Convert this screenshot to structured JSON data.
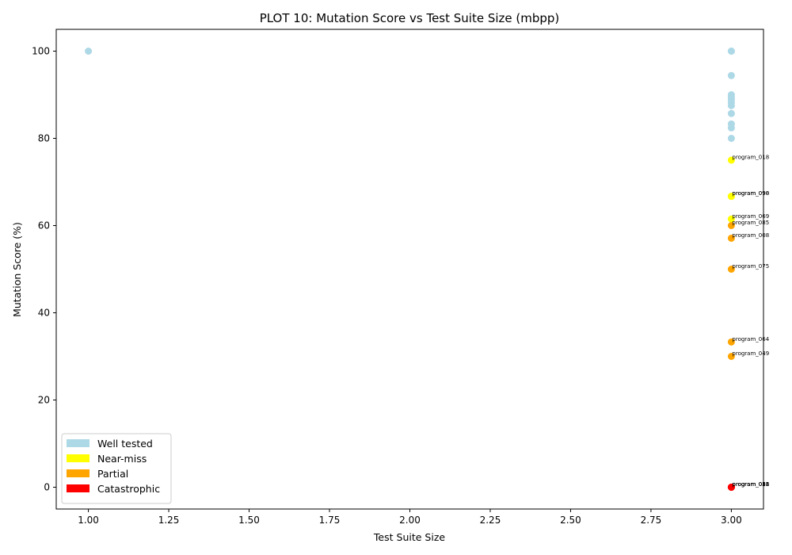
{
  "chart_data": {
    "type": "scatter",
    "title": "PLOT 10: Mutation Score vs Test Suite Size (mbpp)",
    "xlabel": "Test Suite Size",
    "ylabel": "Mutation Score (%)",
    "xlim": [
      0.9,
      3.1
    ],
    "ylim": [
      -5,
      105
    ],
    "xticks": [
      "1.00",
      "1.25",
      "1.50",
      "1.75",
      "2.00",
      "2.25",
      "2.50",
      "2.75",
      "3.00"
    ],
    "yticks": [
      "0",
      "20",
      "40",
      "60",
      "80",
      "100"
    ],
    "grid": false,
    "legend_position": "lower-left",
    "legend": [
      {
        "label": "Well tested",
        "color": "#add8e6"
      },
      {
        "label": "Near-miss",
        "color": "#ffff00"
      },
      {
        "label": "Partial",
        "color": "#ffa500"
      },
      {
        "label": "Catastrophic",
        "color": "#ff0000"
      }
    ],
    "series": [
      {
        "category": "Well tested",
        "color": "#add8e6",
        "points": [
          {
            "x": 1,
            "y": 100
          },
          {
            "x": 3,
            "y": 100
          },
          {
            "x": 3,
            "y": 100
          },
          {
            "x": 3,
            "y": 94.4
          },
          {
            "x": 3,
            "y": 90
          },
          {
            "x": 3,
            "y": 89.5
          },
          {
            "x": 3,
            "y": 88.9
          },
          {
            "x": 3,
            "y": 88.2
          },
          {
            "x": 3,
            "y": 87.5
          },
          {
            "x": 3,
            "y": 85.7
          },
          {
            "x": 3,
            "y": 83.3
          },
          {
            "x": 3,
            "y": 82.4
          },
          {
            "x": 3,
            "y": 80
          }
        ]
      },
      {
        "category": "Near-miss",
        "color": "#ffff00",
        "points": [
          {
            "x": 3,
            "y": 75,
            "label": "program_018"
          },
          {
            "x": 3,
            "y": 66.7,
            "label": "program_090"
          },
          {
            "x": 3,
            "y": 66.7,
            "label": "program_098"
          },
          {
            "x": 3,
            "y": 61.5,
            "label": "program_069"
          }
        ]
      },
      {
        "category": "Partial",
        "color": "#ffa500",
        "points": [
          {
            "x": 3,
            "y": 60,
            "label": "program_085"
          },
          {
            "x": 3,
            "y": 57.1,
            "label": "program_008"
          },
          {
            "x": 3,
            "y": 50,
            "label": "program_075"
          },
          {
            "x": 3,
            "y": 33.3,
            "label": "program_064"
          },
          {
            "x": 3,
            "y": 30,
            "label": "program_049"
          }
        ]
      },
      {
        "category": "Catastrophic",
        "color": "#ff0000",
        "points": [
          {
            "x": 3,
            "y": 0,
            "label": "program_011"
          },
          {
            "x": 3,
            "y": 0,
            "label": "program_033"
          },
          {
            "x": 3,
            "y": 0,
            "label": "program_058"
          },
          {
            "x": 3,
            "y": 0,
            "label": "program_088"
          }
        ]
      }
    ]
  }
}
